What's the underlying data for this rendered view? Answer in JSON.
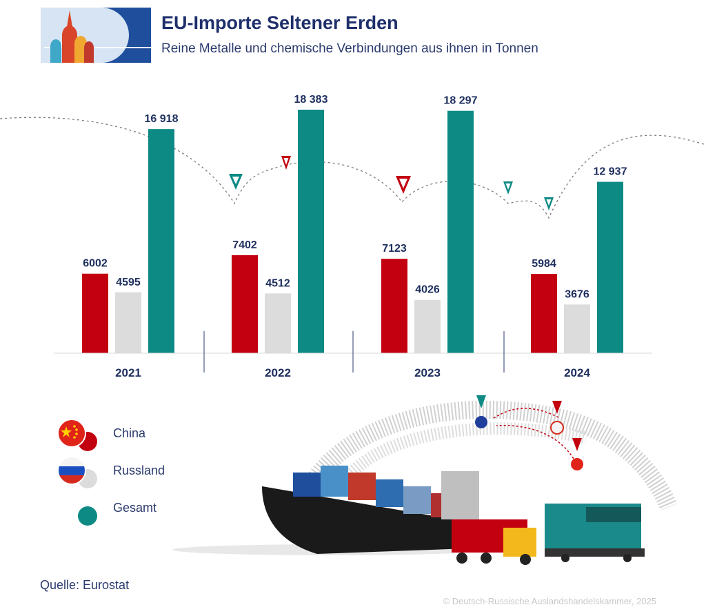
{
  "header": {
    "title": "EU-Importe Seltener Erden",
    "subtitle": "Reine Metalle und chemische Verbindungen aus ihnen in Tonnen"
  },
  "legend": [
    {
      "label": "China",
      "color": "#c3000f",
      "flag": "china-flag-icon"
    },
    {
      "label": "Russland",
      "color": "#dcdcdc",
      "flag": "russia-flag-icon"
    },
    {
      "label": "Gesamt",
      "color": "#0e8a85",
      "flag": "total-dot-icon"
    }
  ],
  "footer": {
    "source": "Quelle: Eurostat",
    "copyright": "© Deutsch-Russische Auslandshandelskammer, 2025"
  },
  "chart_data": {
    "type": "bar",
    "categories": [
      "2021",
      "2022",
      "2023",
      "2024"
    ],
    "series": [
      {
        "name": "China",
        "color": "#c3000f",
        "values": [
          6002,
          7402,
          7123,
          5984
        ],
        "labels": [
          "6002",
          "7402",
          "7123",
          "5984"
        ]
      },
      {
        "name": "Russland",
        "color": "#dcdcdc",
        "values": [
          4595,
          4512,
          4026,
          3676
        ],
        "labels": [
          "4595",
          "4512",
          "4026",
          "3676"
        ]
      },
      {
        "name": "Gesamt",
        "color": "#0e8a85",
        "values": [
          16918,
          18383,
          18297,
          12937
        ],
        "labels": [
          "16 918",
          "18 383",
          "18 297",
          "12 937"
        ]
      }
    ],
    "ylim": [
      0,
      18383
    ],
    "grid": false,
    "legend_position": "bottom-left"
  }
}
